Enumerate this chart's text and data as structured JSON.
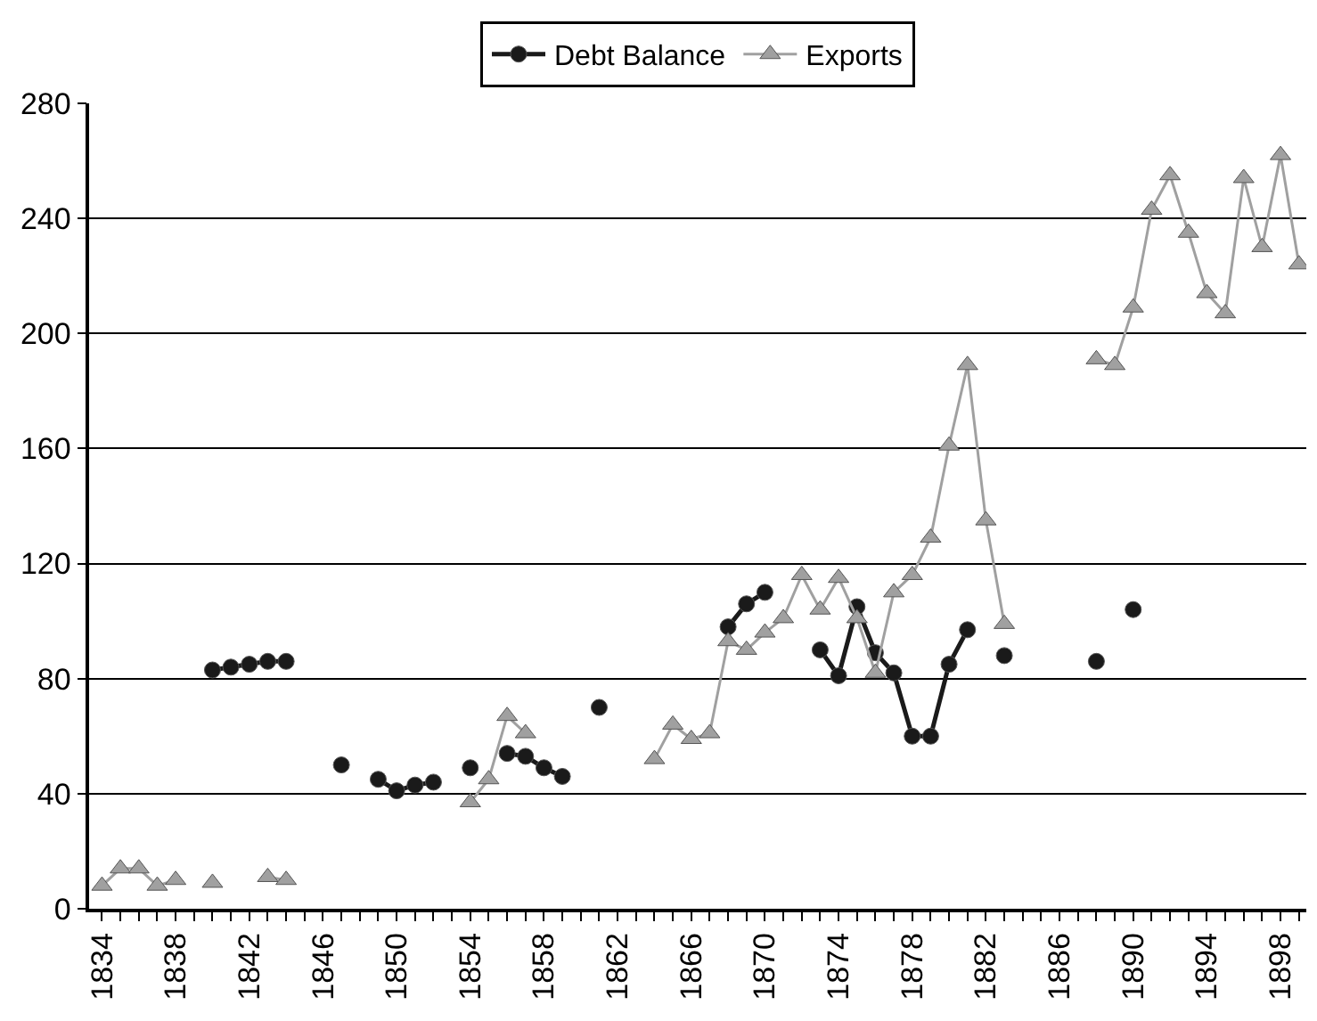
{
  "chart_data": {
    "type": "line",
    "x": [
      1834,
      1835,
      1836,
      1837,
      1838,
      1839,
      1840,
      1841,
      1842,
      1843,
      1844,
      1845,
      1846,
      1847,
      1848,
      1849,
      1850,
      1851,
      1852,
      1853,
      1854,
      1855,
      1856,
      1857,
      1858,
      1859,
      1860,
      1861,
      1862,
      1863,
      1864,
      1865,
      1866,
      1867,
      1868,
      1869,
      1870,
      1871,
      1872,
      1873,
      1874,
      1875,
      1876,
      1877,
      1878,
      1879,
      1880,
      1881,
      1882,
      1883,
      1884,
      1885,
      1886,
      1887,
      1888,
      1889,
      1890,
      1891,
      1892,
      1893,
      1894,
      1895,
      1896,
      1897,
      1898,
      1899
    ],
    "series": [
      {
        "name": "Debt Balance",
        "color": "#1a1a1a",
        "marker": "circle",
        "values": [
          null,
          null,
          null,
          null,
          null,
          null,
          83,
          84,
          85,
          86,
          86,
          null,
          null,
          50,
          null,
          45,
          41,
          43,
          44,
          null,
          49,
          null,
          54,
          53,
          49,
          46,
          null,
          70,
          null,
          null,
          null,
          null,
          null,
          null,
          98,
          106,
          110,
          null,
          null,
          90,
          81,
          105,
          89,
          82,
          60,
          60,
          85,
          97,
          null,
          88,
          null,
          null,
          null,
          null,
          86,
          null,
          104,
          null,
          null,
          null,
          null,
          null,
          null,
          null,
          null,
          null
        ]
      },
      {
        "name": "Exports",
        "color": "#a0a0a0",
        "marker": "triangle",
        "values": [
          8,
          14,
          14,
          8,
          10,
          null,
          9,
          null,
          null,
          11,
          10,
          null,
          null,
          null,
          null,
          null,
          null,
          null,
          null,
          null,
          37,
          45,
          67,
          61,
          null,
          null,
          null,
          null,
          null,
          null,
          52,
          64,
          59,
          61,
          93,
          90,
          96,
          101,
          116,
          104,
          115,
          101,
          82,
          110,
          116,
          129,
          161,
          189,
          135,
          99,
          null,
          null,
          null,
          null,
          191,
          189,
          209,
          243,
          255,
          235,
          214,
          207,
          254,
          230,
          262,
          224
        ]
      }
    ],
    "xlim": [
      1833.3,
      1899.4
    ],
    "xticks": [
      1834,
      {
        "value": 1835,
        "label": null
      },
      {
        "value": 1836,
        "label": null
      },
      {
        "value": 1837,
        "label": null
      },
      1838,
      {
        "value": 1839,
        "label": null
      },
      {
        "value": 1840,
        "label": null
      },
      {
        "value": 1841,
        "label": null
      },
      1842,
      {
        "value": 1843,
        "label": null
      },
      {
        "value": 1844,
        "label": null
      },
      {
        "value": 1845,
        "label": null
      },
      1846,
      {
        "value": 1847,
        "label": null
      },
      {
        "value": 1848,
        "label": null
      },
      {
        "value": 1849,
        "label": null
      },
      1850,
      {
        "value": 1851,
        "label": null
      },
      {
        "value": 1852,
        "label": null
      },
      {
        "value": 1853,
        "label": null
      },
      1854,
      {
        "value": 1855,
        "label": null
      },
      {
        "value": 1856,
        "label": null
      },
      {
        "value": 1857,
        "label": null
      },
      1858,
      {
        "value": 1859,
        "label": null
      },
      {
        "value": 1860,
        "label": null
      },
      {
        "value": 1861,
        "label": null
      },
      1862,
      {
        "value": 1863,
        "label": null
      },
      {
        "value": 1864,
        "label": null
      },
      {
        "value": 1865,
        "label": null
      },
      1866,
      {
        "value": 1867,
        "label": null
      },
      {
        "value": 1868,
        "label": null
      },
      {
        "value": 1869,
        "label": null
      },
      1870,
      {
        "value": 1871,
        "label": null
      },
      {
        "value": 1872,
        "label": null
      },
      {
        "value": 1873,
        "label": null
      },
      1874,
      {
        "value": 1875,
        "label": null
      },
      {
        "value": 1876,
        "label": null
      },
      {
        "value": 1877,
        "label": null
      },
      1878,
      {
        "value": 1879,
        "label": null
      },
      {
        "value": 1880,
        "label": null
      },
      {
        "value": 1881,
        "label": null
      },
      1882,
      {
        "value": 1883,
        "label": null
      },
      {
        "value": 1884,
        "label": null
      },
      {
        "value": 1885,
        "label": null
      },
      1886,
      {
        "value": 1887,
        "label": null
      },
      {
        "value": 1888,
        "label": null
      },
      {
        "value": 1889,
        "label": null
      },
      1890,
      {
        "value": 1891,
        "label": null
      },
      {
        "value": 1892,
        "label": null
      },
      {
        "value": 1893,
        "label": null
      },
      1894,
      {
        "value": 1895,
        "label": null
      },
      {
        "value": 1896,
        "label": null
      },
      {
        "value": 1897,
        "label": null
      },
      1898,
      {
        "value": 1899,
        "label": null
      }
    ],
    "ylim": [
      0,
      280
    ],
    "yticks": [
      0,
      40,
      80,
      120,
      160,
      200,
      240,
      280
    ],
    "grid": "y",
    "legend": "top",
    "line_style": "solid"
  }
}
